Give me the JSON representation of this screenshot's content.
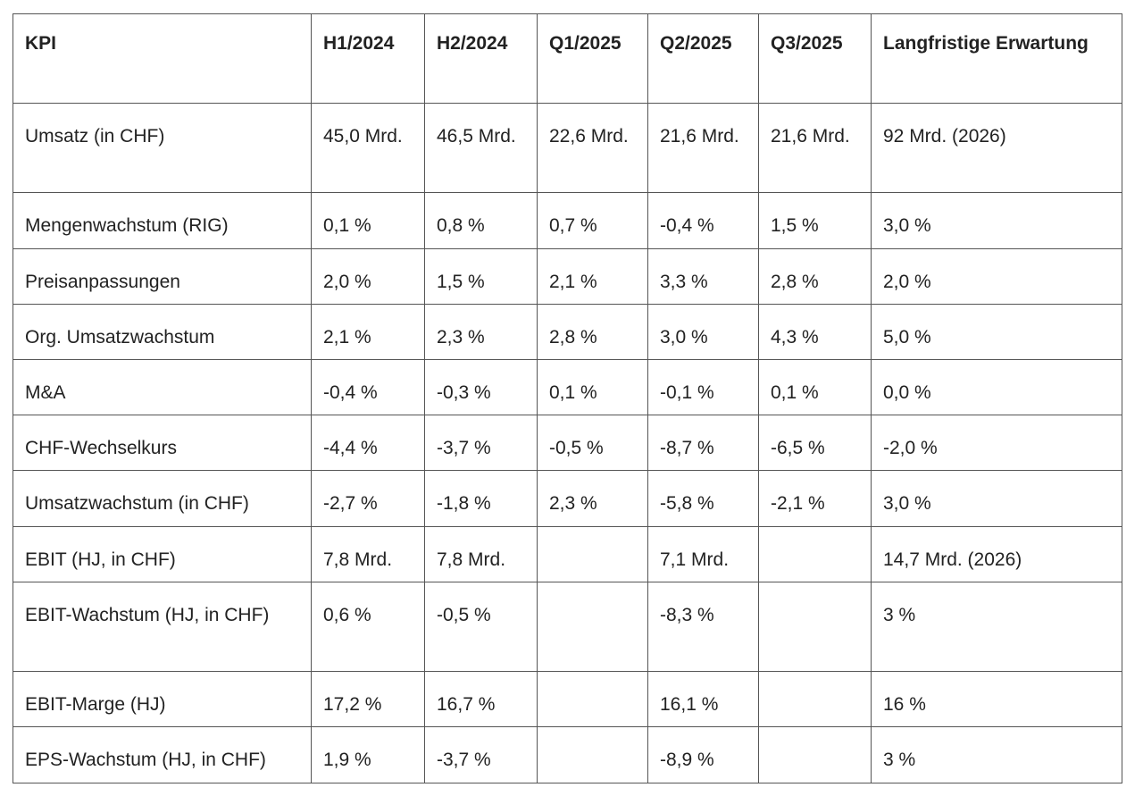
{
  "table": {
    "header": [
      "KPI",
      "H1/2024",
      "H2/2024",
      "Q1/2025",
      "Q2/2025",
      "Q3/2025",
      "Langfristige Erwartung"
    ],
    "rows": [
      [
        "Umsatz (in CHF)",
        "45,0 Mrd.",
        "46,5 Mrd.",
        "22,6 Mrd.",
        "21,6 Mrd.",
        "21,6 Mrd.",
        "92 Mrd. (2026)"
      ],
      [
        "Mengenwachstum (RIG)",
        "0,1 %",
        "0,8 %",
        "0,7 %",
        "-0,4 %",
        "1,5 %",
        "3,0 %"
      ],
      [
        "Preisanpassungen",
        "2,0 %",
        "1,5 %",
        "2,1 %",
        "3,3 %",
        "2,8 %",
        "2,0 %"
      ],
      [
        "Org. Umsatzwachstum",
        "2,1 %",
        "2,3 %",
        "2,8 %",
        "3,0 %",
        "4,3 %",
        "5,0 %"
      ],
      [
        "M&A",
        "-0,4 %",
        "-0,3 %",
        "0,1 %",
        "-0,1 %",
        "0,1 %",
        "0,0 %"
      ],
      [
        "CHF-Wechselkurs",
        "-4,4 %",
        "-3,7 %",
        "-0,5 %",
        "-8,7 %",
        "-6,5 %",
        "-2,0 %"
      ],
      [
        "Umsatzwachstum (in CHF)",
        "-2,7 %",
        "-1,8 %",
        "2,3 %",
        "-5,8 %",
        "-2,1 %",
        "3,0 %"
      ],
      [
        "EBIT (HJ, in CHF)",
        "7,8 Mrd.",
        "7,8 Mrd.",
        null,
        "7,1 Mrd.",
        null,
        "14,7 Mrd. (2026)"
      ],
      [
        "EBIT-Wachstum (HJ, in CHF)",
        "0,6 %",
        "-0,5 %",
        null,
        "-8,3 %",
        null,
        "3 %"
      ],
      [
        "EBIT-Marge (HJ)",
        "17,2 %",
        "16,7 %",
        null,
        "16,1 %",
        null,
        "16 %"
      ],
      [
        "EPS-Wachstum (HJ, in CHF)",
        "1,9 %",
        "-3,7 %",
        null,
        "-8,9 %",
        null,
        "3 %"
      ]
    ]
  }
}
